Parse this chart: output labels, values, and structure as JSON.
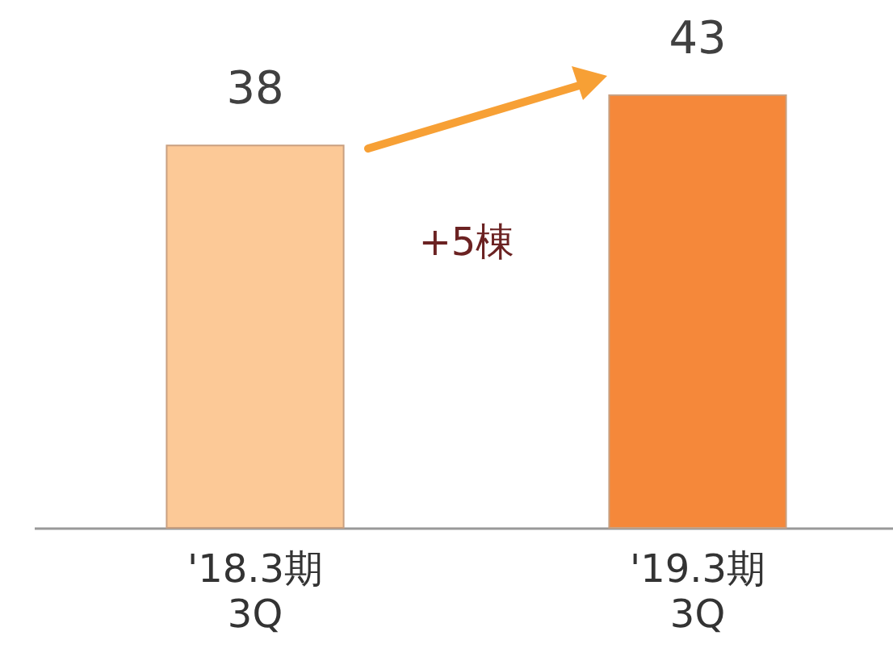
{
  "chart_data": {
    "type": "bar",
    "categories": [
      "'18.3期\n3Q",
      "'19.3期\n3Q"
    ],
    "values": [
      38,
      43
    ],
    "colors": [
      "#fcc997",
      "#f5883a"
    ],
    "data_labels": true,
    "annotations": [
      "+5棟"
    ]
  }
}
